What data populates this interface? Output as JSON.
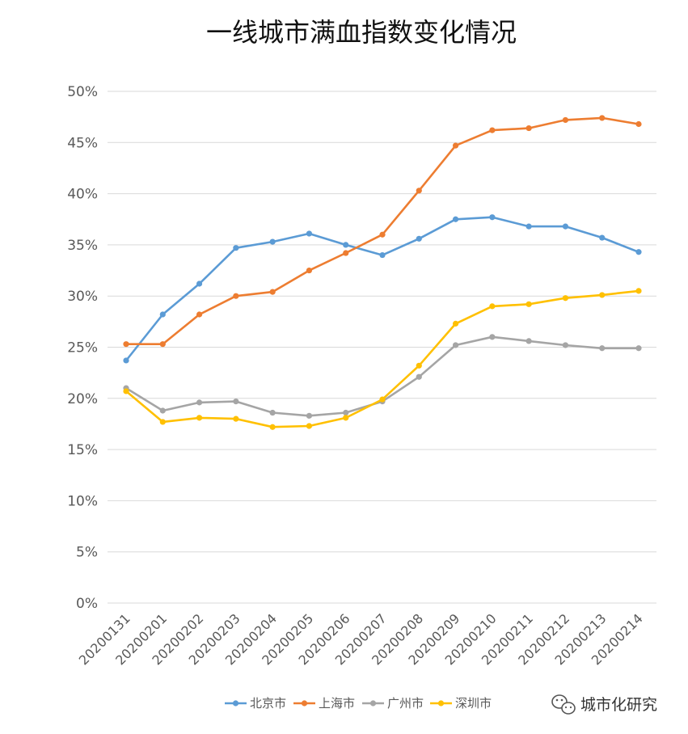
{
  "chart_data": {
    "type": "line",
    "title": "一线城市满血指数变化情况",
    "categories": [
      "20200131",
      "20200201",
      "20200202",
      "20200203",
      "20200204",
      "20200205",
      "20200206",
      "20200207",
      "20200208",
      "20200209",
      "20200210",
      "20200211",
      "20200212",
      "20200213",
      "20200214"
    ],
    "y_ticks": [
      "0%",
      "5%",
      "10%",
      "15%",
      "20%",
      "25%",
      "30%",
      "35%",
      "40%",
      "45%",
      "50%"
    ],
    "ylim": [
      0,
      50
    ],
    "grid": true,
    "legend_position": "bottom",
    "series": [
      {
        "name": "北京市",
        "color": "#5B9BD5",
        "values": [
          23.7,
          28.2,
          31.2,
          34.7,
          35.3,
          36.1,
          35.0,
          34.0,
          35.6,
          37.5,
          37.7,
          36.8,
          36.8,
          35.7,
          34.3
        ]
      },
      {
        "name": "上海市",
        "color": "#ED7D31",
        "values": [
          25.3,
          25.3,
          28.2,
          30.0,
          30.4,
          32.5,
          34.2,
          36.0,
          40.3,
          44.7,
          46.2,
          46.4,
          47.2,
          47.4,
          46.8
        ]
      },
      {
        "name": "广州市",
        "color": "#A5A5A5",
        "values": [
          21.0,
          18.8,
          19.6,
          19.7,
          18.6,
          18.3,
          18.6,
          19.7,
          22.1,
          25.2,
          26.0,
          25.6,
          25.2,
          24.9,
          24.9
        ]
      },
      {
        "name": "深圳市",
        "color": "#FFC000",
        "values": [
          20.7,
          17.7,
          18.1,
          18.0,
          17.2,
          17.3,
          18.1,
          19.9,
          23.2,
          27.3,
          29.0,
          29.2,
          29.8,
          30.1,
          30.5
        ]
      }
    ]
  },
  "watermark": {
    "text": "城市化研究",
    "icon": "wechat-icon"
  }
}
